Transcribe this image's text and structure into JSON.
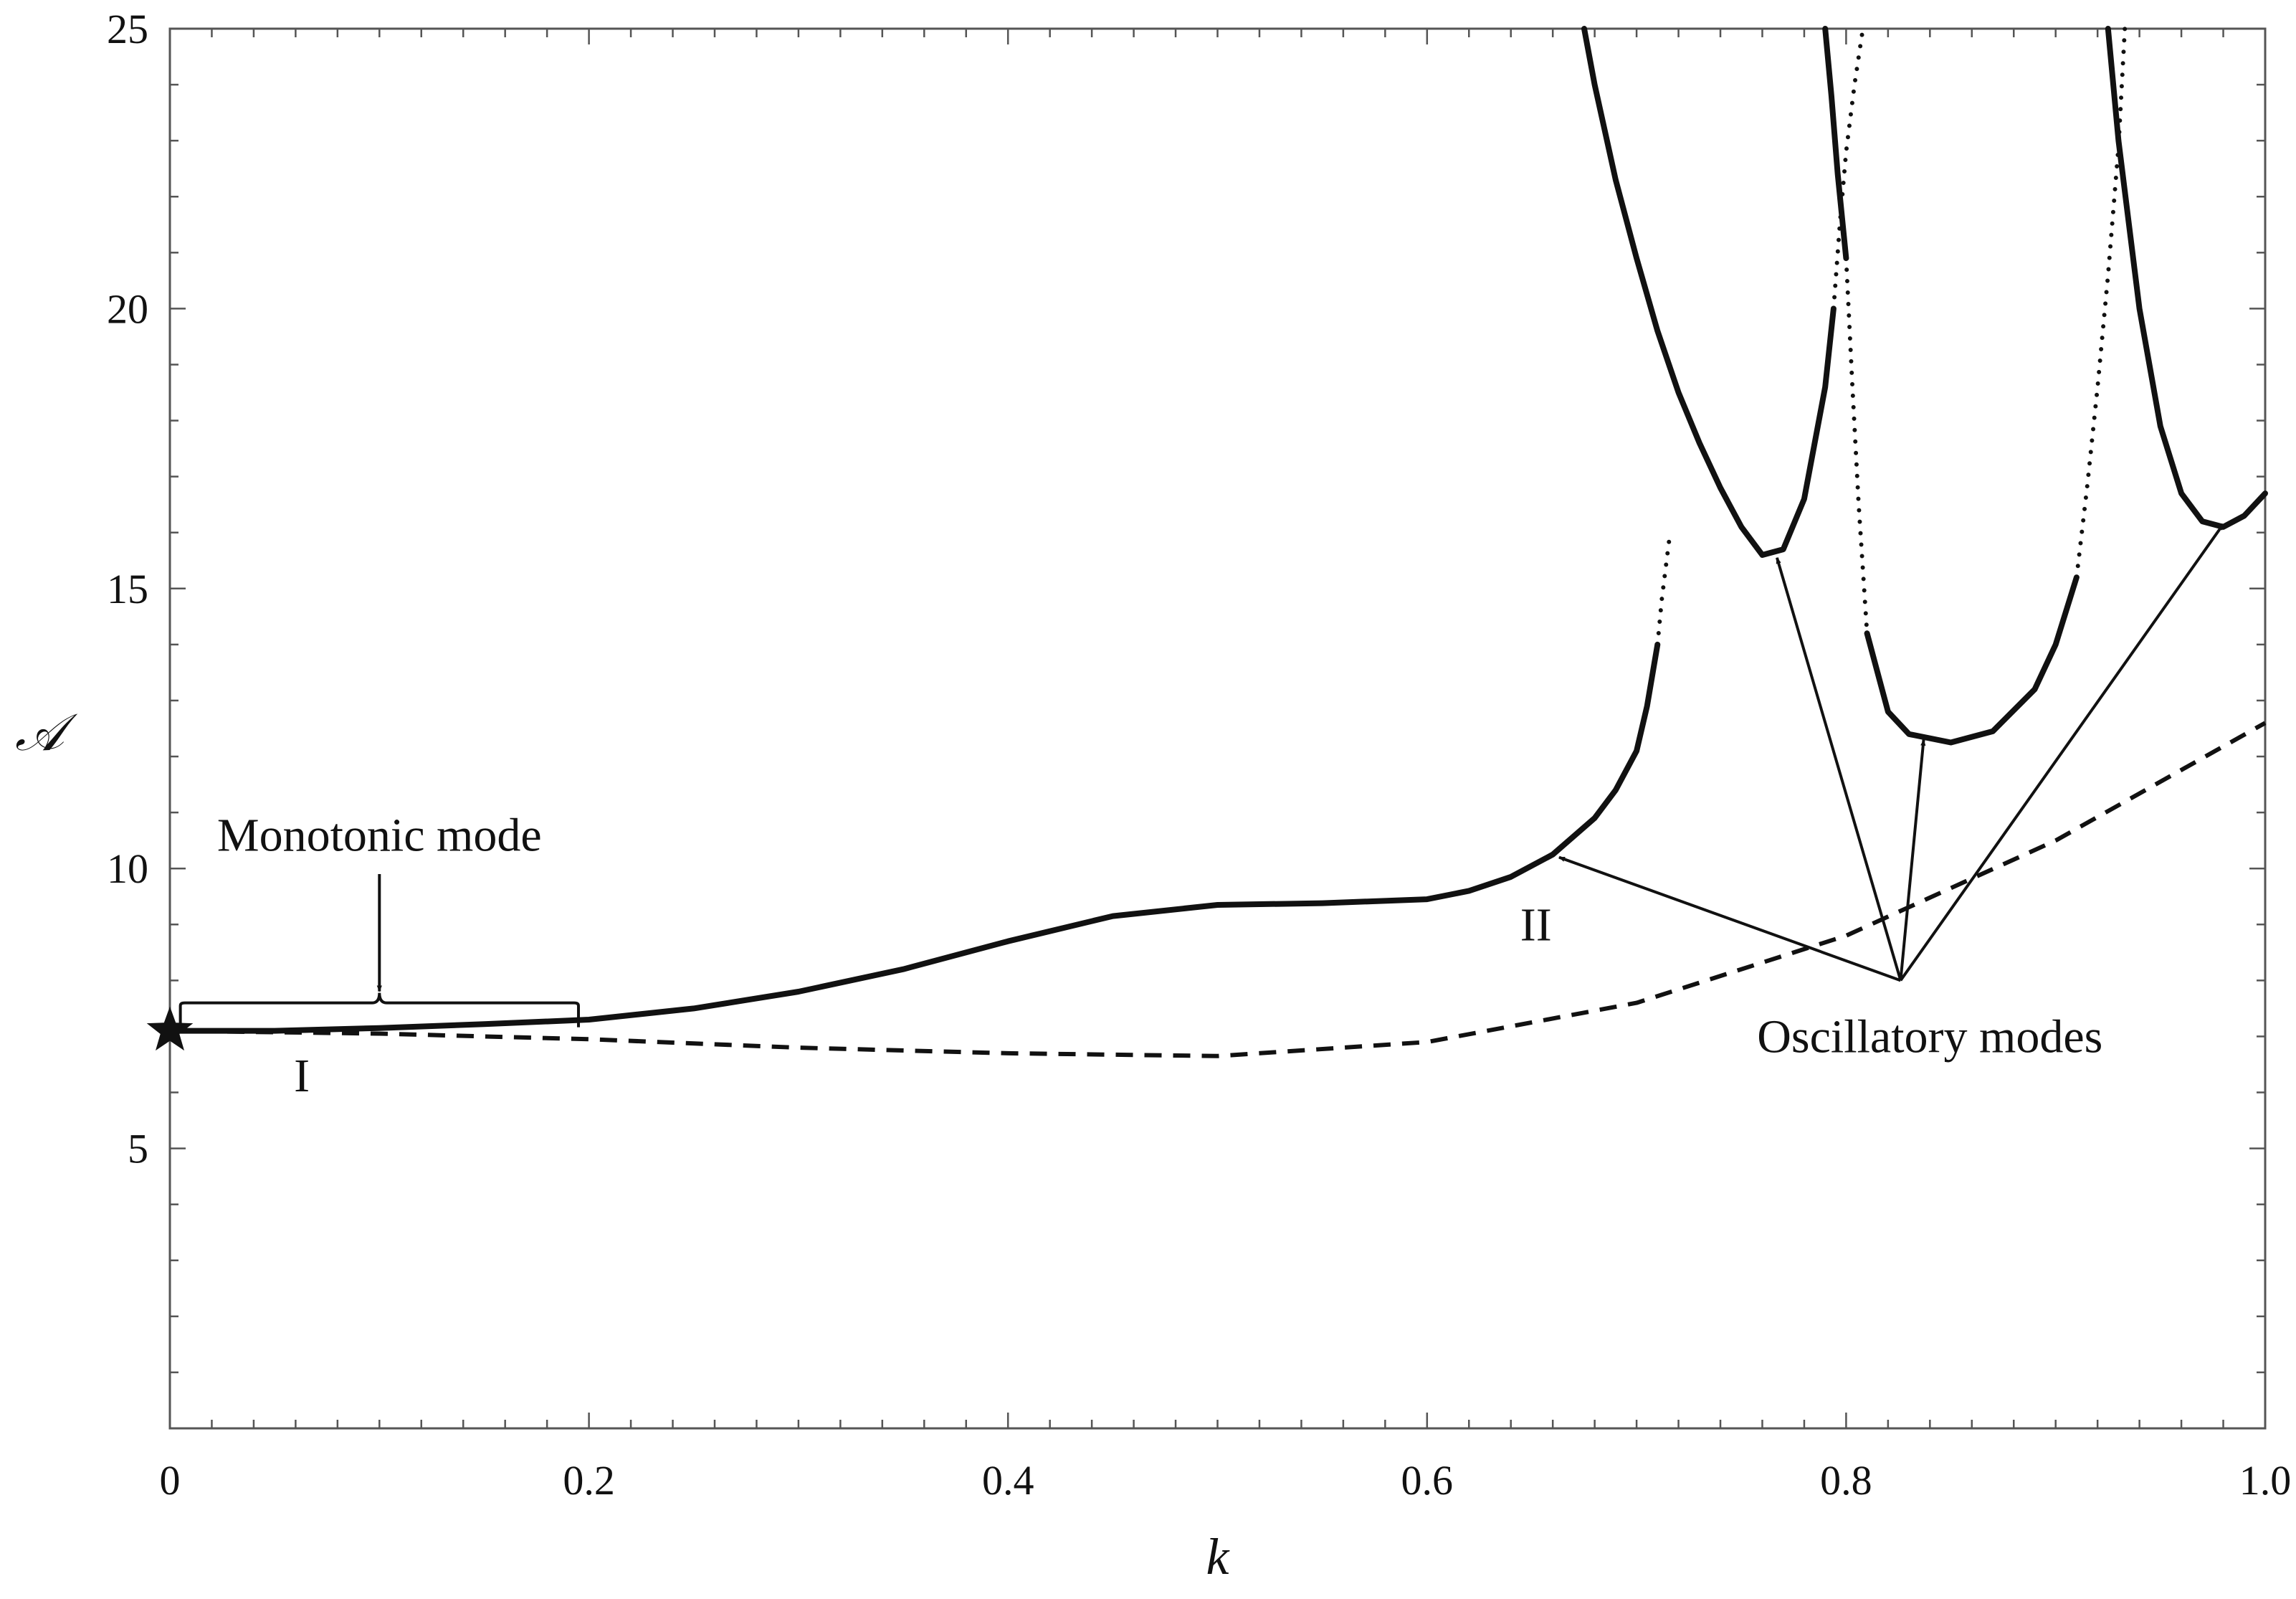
{
  "chart_data": {
    "type": "line",
    "xlabel": "k",
    "ylabel": "𝒜",
    "xlim": [
      0,
      1.0
    ],
    "ylim": [
      0,
      25
    ],
    "x_ticks": [
      "0",
      "0.2",
      "0.4",
      "0.6",
      "0.8",
      "1.0"
    ],
    "x_tick_values": [
      0,
      0.2,
      0.4,
      0.6,
      0.8,
      1.0
    ],
    "y_ticks": [
      "5",
      "10",
      "15",
      "20",
      "25"
    ],
    "y_tick_values": [
      5,
      10,
      15,
      20,
      25
    ],
    "grid": false,
    "legend": "none",
    "colors": {
      "line": "#111111",
      "axis": "#555555"
    },
    "series": [
      {
        "style": "solid",
        "x": [
          0,
          0.05,
          0.1,
          0.15,
          0.2,
          0.25,
          0.3,
          0.35,
          0.4,
          0.45,
          0.5,
          0.55,
          0.6,
          0.62,
          0.64,
          0.66,
          0.68,
          0.69,
          0.7,
          0.705,
          0.71
        ],
        "y": [
          7.1,
          7.1,
          7.15,
          7.22,
          7.3,
          7.5,
          7.8,
          8.2,
          8.7,
          9.15,
          9.35,
          9.38,
          9.45,
          9.6,
          9.85,
          10.25,
          10.9,
          11.4,
          12.1,
          12.9,
          14.0
        ]
      },
      {
        "style": "dotted",
        "x": [
          0.71,
          0.712,
          0.714,
          0.716
        ],
        "y": [
          14.0,
          14.8,
          15.4,
          16.0
        ]
      },
      {
        "style": "solid",
        "x": [
          0.675,
          0.68,
          0.69,
          0.7,
          0.71,
          0.72,
          0.73,
          0.74,
          0.75,
          0.76,
          0.77,
          0.78,
          0.79,
          0.794
        ],
        "y": [
          25,
          24.0,
          22.3,
          20.9,
          19.6,
          18.5,
          17.6,
          16.8,
          16.1,
          15.6,
          15.7,
          16.6,
          18.6,
          20.0
        ]
      },
      {
        "style": "dotted",
        "x": [
          0.794,
          0.797,
          0.8,
          0.804,
          0.808
        ],
        "y": [
          20.0,
          21.5,
          22.8,
          24.0,
          25
        ]
      },
      {
        "style": "solid",
        "x": [
          0.79,
          0.793,
          0.796,
          0.8
        ],
        "y": [
          25,
          23.8,
          22.4,
          20.9
        ]
      },
      {
        "style": "dotted",
        "x": [
          0.8,
          0.803,
          0.806,
          0.81
        ],
        "y": [
          20.9,
          18.6,
          16.5,
          14.2
        ]
      },
      {
        "style": "solid",
        "x": [
          0.81,
          0.82,
          0.83,
          0.85,
          0.87,
          0.89,
          0.9,
          0.91
        ],
        "y": [
          14.2,
          12.8,
          12.4,
          12.25,
          12.45,
          13.2,
          14.0,
          15.2
        ]
      },
      {
        "style": "dotted",
        "x": [
          0.91,
          0.915,
          0.92,
          0.925,
          0.93,
          0.933
        ],
        "y": [
          15.2,
          16.8,
          18.6,
          20.6,
          22.9,
          25
        ]
      },
      {
        "style": "solid",
        "x": [
          0.925,
          0.93,
          0.94,
          0.95,
          0.96,
          0.97,
          0.98,
          0.99,
          1.0
        ],
        "y": [
          25,
          23.0,
          20.0,
          17.9,
          16.7,
          16.2,
          16.1,
          16.3,
          16.7
        ]
      },
      {
        "style": "dashed",
        "x": [
          0,
          0.1,
          0.2,
          0.3,
          0.4,
          0.5,
          0.6,
          0.7,
          0.8,
          0.9,
          1.0
        ],
        "y": [
          7.1,
          7.05,
          6.95,
          6.8,
          6.7,
          6.65,
          6.9,
          7.6,
          8.8,
          10.5,
          12.6
        ]
      }
    ],
    "marker": {
      "symbol": "star",
      "x": 0,
      "y": 7.1
    },
    "annotations": [
      {
        "text": "Monotonic mode",
        "x": 0.1,
        "y": 10.6
      },
      {
        "text": "I",
        "x": 0.063,
        "y": 6.3
      },
      {
        "text": "II",
        "x": 0.652,
        "y": 9.0
      },
      {
        "text": "Oscillatory modes",
        "x": 0.84,
        "y": 7.0
      }
    ],
    "bracket": {
      "x1": 0.005,
      "x2": 0.195,
      "y": 7.6,
      "arrow_from_y": 9.9
    },
    "arrows": [
      {
        "from": [
          0.826,
          8.0
        ],
        "to": [
          0.663,
          10.2
        ]
      },
      {
        "from": [
          0.826,
          8.0
        ],
        "to": [
          0.767,
          15.55
        ]
      },
      {
        "from": [
          0.826,
          8.0
        ],
        "to": [
          0.837,
          12.3
        ]
      },
      {
        "from": [
          0.826,
          8.0
        ],
        "to": [
          0.98,
          16.15
        ]
      }
    ]
  }
}
